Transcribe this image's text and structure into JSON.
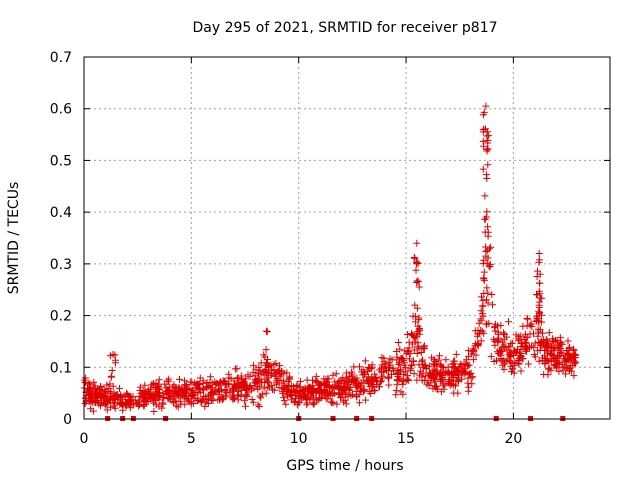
{
  "chart_data": {
    "type": "scatter",
    "title": "Day 295 of 2021, SRMTID for receiver p817",
    "xlabel": "GPS time / hours",
    "ylabel": "SRMTID / TECUs",
    "xlim": [
      0,
      24.5
    ],
    "ylim": [
      0,
      0.7
    ],
    "xticks": [
      0,
      5,
      10,
      15,
      20
    ],
    "yticks": [
      0,
      0.1,
      0.2,
      0.3,
      0.4,
      0.5,
      0.6,
      0.7
    ],
    "xtick_labels": [
      "0",
      "5",
      "10",
      "15",
      "20"
    ],
    "ytick_labels": [
      "0",
      "0.1",
      "0.2",
      "0.3",
      "0.4",
      "0.5",
      "0.6",
      "0.7"
    ],
    "grid": true,
    "marker": "+",
    "color": "#e00000",
    "zero_markers_x": [
      1.1,
      1.8,
      2.3,
      3.8,
      10.0,
      11.6,
      12.7,
      13.4,
      19.2,
      20.8,
      22.3
    ],
    "envelope": {
      "description": "sampled as (hour, baseline, spread)",
      "points": [
        [
          0.0,
          0.05,
          0.04
        ],
        [
          0.5,
          0.045,
          0.035
        ],
        [
          1.0,
          0.04,
          0.035
        ],
        [
          1.5,
          0.04,
          0.03
        ],
        [
          2.0,
          0.035,
          0.03
        ],
        [
          3.0,
          0.045,
          0.035
        ],
        [
          4.0,
          0.05,
          0.035
        ],
        [
          5.0,
          0.05,
          0.035
        ],
        [
          6.0,
          0.055,
          0.04
        ],
        [
          7.0,
          0.06,
          0.04
        ],
        [
          8.0,
          0.065,
          0.05
        ],
        [
          8.5,
          0.09,
          0.06
        ],
        [
          9.0,
          0.08,
          0.05
        ],
        [
          9.5,
          0.06,
          0.04
        ],
        [
          10.0,
          0.05,
          0.03
        ],
        [
          11.0,
          0.055,
          0.035
        ],
        [
          12.0,
          0.06,
          0.04
        ],
        [
          13.0,
          0.07,
          0.05
        ],
        [
          14.0,
          0.09,
          0.05
        ],
        [
          15.0,
          0.1,
          0.07
        ],
        [
          15.5,
          0.15,
          0.1
        ],
        [
          16.0,
          0.09,
          0.06
        ],
        [
          17.0,
          0.08,
          0.05
        ],
        [
          18.0,
          0.1,
          0.06
        ],
        [
          18.5,
          0.2,
          0.12
        ],
        [
          18.8,
          0.3,
          0.2
        ],
        [
          19.2,
          0.15,
          0.08
        ],
        [
          20.0,
          0.12,
          0.06
        ],
        [
          20.5,
          0.14,
          0.06
        ],
        [
          21.2,
          0.18,
          0.1
        ],
        [
          21.5,
          0.12,
          0.06
        ],
        [
          22.0,
          0.13,
          0.05
        ],
        [
          22.8,
          0.11,
          0.04
        ]
      ]
    },
    "peaks": [
      {
        "x": 15.5,
        "y": 0.34
      },
      {
        "x": 18.72,
        "y": 0.605
      },
      {
        "x": 21.2,
        "y": 0.32
      },
      {
        "x": 8.5,
        "y": 0.17
      },
      {
        "x": 1.35,
        "y": 0.125
      }
    ],
    "x_end": 22.9
  }
}
